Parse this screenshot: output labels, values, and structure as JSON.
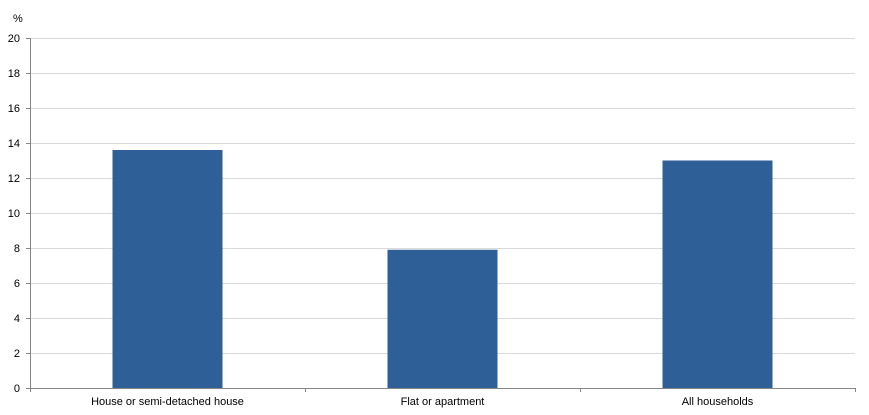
{
  "chart_data": {
    "type": "bar",
    "title": "",
    "xlabel": "",
    "ylabel": "%",
    "categories": [
      "House or semi-detached house",
      "Flat or apartment",
      "All households"
    ],
    "values": [
      13.6,
      7.9,
      13.0
    ],
    "ylim": [
      0,
      20
    ],
    "yticks": [
      "0",
      "2",
      "4",
      "6",
      "8",
      "10",
      "12",
      "14",
      "16",
      "18",
      "20"
    ],
    "grid": true,
    "legend": "none",
    "colors": {
      "bar": "#2e5f96",
      "grid": "#d9d9d9",
      "axis": "#868686"
    }
  }
}
